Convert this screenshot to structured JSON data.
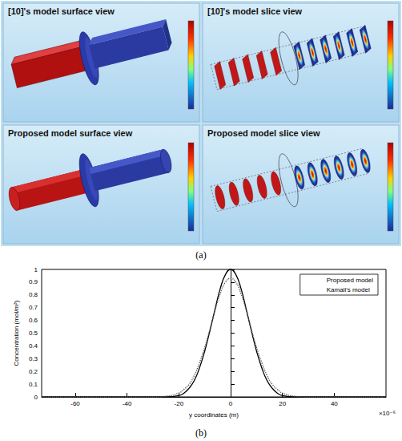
{
  "figure": {
    "panel_a": {
      "label": "(a)",
      "panels": [
        {
          "title": "[10]'s model surface view",
          "view": "surface",
          "shape": "box"
        },
        {
          "title": "[10]'s model slice view",
          "view": "slice",
          "shape": "box"
        },
        {
          "title": "Proposed model surface view",
          "view": "surface",
          "shape": "cylinder"
        },
        {
          "title": "Proposed model slice view",
          "view": "slice",
          "shape": "cylinder"
        }
      ]
    },
    "panel_b": {
      "label": "(b)"
    }
  },
  "chart_data": {
    "type": "line",
    "xlabel": "y coordinates (m)",
    "ylabel": "Concentration (mol/m³)",
    "x_scale_label": "×10⁻⁶",
    "x": [
      -73,
      -40,
      -30,
      -25,
      -20,
      -18,
      -16,
      -14,
      -12,
      -10,
      -8,
      -6,
      -4,
      -2,
      0,
      2,
      4,
      6,
      8,
      10,
      12,
      14,
      16,
      18,
      20,
      25,
      30,
      40,
      60
    ],
    "series": [
      {
        "name": "Proposed model",
        "color": "#000000",
        "line_style": "solid",
        "values": [
          0,
          0,
          0,
          0,
          0.01,
          0.03,
          0.07,
          0.13,
          0.23,
          0.36,
          0.52,
          0.69,
          0.85,
          0.96,
          1,
          0.96,
          0.85,
          0.69,
          0.52,
          0.36,
          0.23,
          0.13,
          0.07,
          0.03,
          0.01,
          0,
          0,
          0,
          0
        ]
      },
      {
        "name": "Kamali's model",
        "color": "#555555",
        "line_style": "dotted",
        "values": [
          0,
          0,
          0,
          0.005,
          0.03,
          0.06,
          0.1,
          0.17,
          0.27,
          0.39,
          0.53,
          0.68,
          0.81,
          0.9,
          0.93,
          0.9,
          0.81,
          0.68,
          0.53,
          0.39,
          0.27,
          0.17,
          0.1,
          0.06,
          0.03,
          0.005,
          0,
          0,
          0
        ]
      }
    ],
    "xlim": [
      -73,
      60
    ],
    "xticks": [
      -60,
      -40,
      -20,
      0,
      20,
      40
    ],
    "ylim": [
      0,
      1
    ],
    "yticks": [
      0,
      0.1,
      0.2,
      0.3,
      0.4,
      0.5,
      0.6,
      0.7,
      0.8,
      0.9,
      1
    ],
    "legend": "upper right",
    "grid": false
  }
}
